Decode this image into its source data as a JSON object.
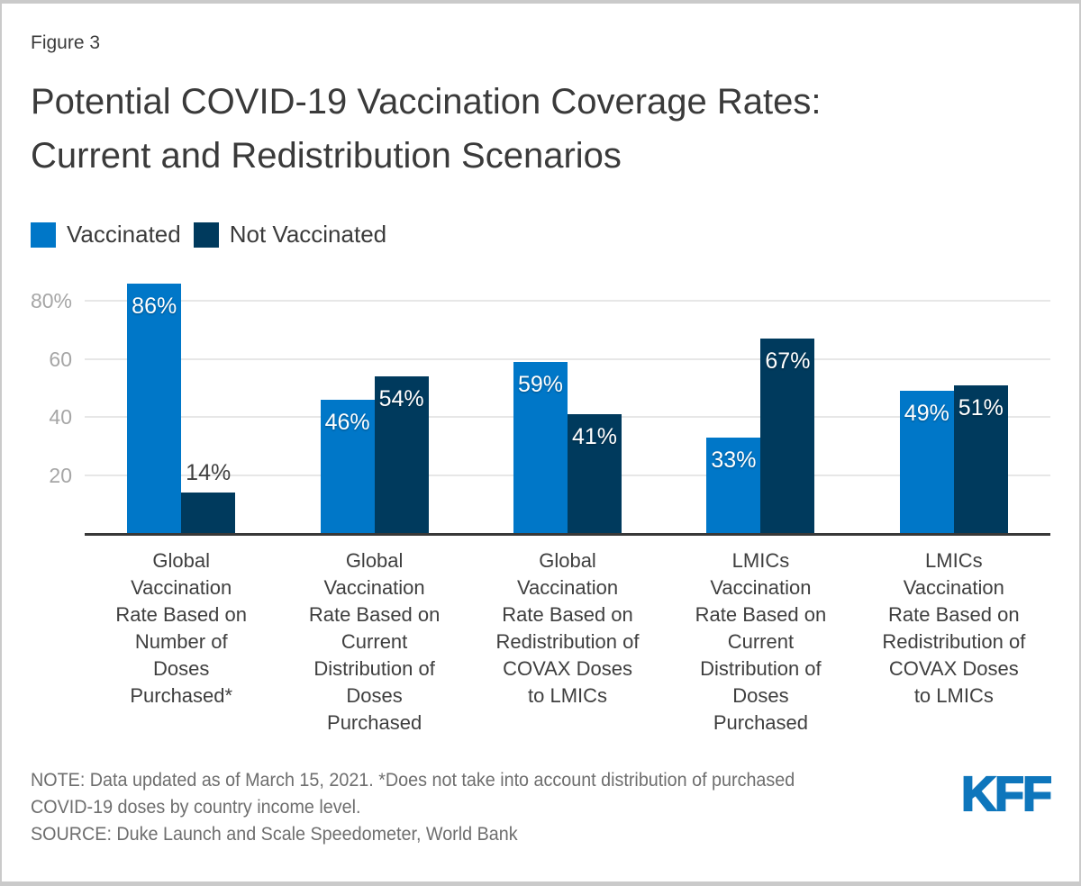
{
  "figure_label": "Figure 3",
  "title_lines": [
    "Potential COVID-19 Vaccination Coverage Rates:",
    "Current and Redistribution Scenarios"
  ],
  "legend": {
    "items": [
      {
        "label": "Vaccinated",
        "color": "#0077C8"
      },
      {
        "label": "Not Vaccinated",
        "color": "#003A5D"
      }
    ]
  },
  "chart_data": {
    "type": "bar",
    "title": "Potential COVID-19 Vaccination Coverage Rates: Current and Redistribution Scenarios",
    "unit": "percent",
    "categories": [
      "Global Vaccination Rate Based on Number of Doses Purchased*",
      "Global Vaccination Rate Based on Current Distribution of Doses Purchased",
      "Global Vaccination Rate Based on Redistribution of COVAX Doses to LMICs",
      "LMICs Vaccination Rate Based on Current Distribution of Doses Purchased",
      "LMICs Vaccination Rate Based on Redistribution of COVAX Doses to LMICs"
    ],
    "category_label_lines": [
      [
        "Global",
        "Vaccination",
        "Rate Based on",
        "Number of",
        "Doses",
        "Purchased*"
      ],
      [
        "Global",
        "Vaccination",
        "Rate Based on",
        "Current",
        "Distribution of",
        "Doses",
        "Purchased"
      ],
      [
        "Global",
        "Vaccination",
        "Rate Based on",
        "Redistribution of",
        "COVAX Doses",
        "to LMICs"
      ],
      [
        "LMICs",
        "Vaccination",
        "Rate Based on",
        "Current",
        "Distribution of",
        "Doses",
        "Purchased"
      ],
      [
        "LMICs",
        "Vaccination",
        "Rate Based on",
        "Redistribution of",
        "COVAX Doses",
        "to LMICs"
      ]
    ],
    "series": [
      {
        "name": "Vaccinated",
        "color": "#0077C8",
        "values": [
          86,
          46,
          59,
          33,
          49
        ]
      },
      {
        "name": "Not Vaccinated",
        "color": "#003A5D",
        "values": [
          14,
          54,
          41,
          67,
          51
        ]
      }
    ],
    "value_label_suffix": "%",
    "inside_label_min_value": 20,
    "y_ticks": [
      {
        "value": 20,
        "label": "20"
      },
      {
        "value": 40,
        "label": "40"
      },
      {
        "value": 60,
        "label": "60"
      },
      {
        "value": 80,
        "label": "80%"
      }
    ],
    "ylim": [
      0,
      92.4
    ],
    "grid": true,
    "legend_position": "top-left"
  },
  "note_lines": [
    "NOTE: Data updated as of March 15, 2021. *Does not take into account distribution of purchased",
    "COVID-19 doses by country income level.",
    "SOURCE: Duke Launch and Scale Speedometer, World Bank"
  ],
  "logo_text": "KFF",
  "colors": {
    "vaccinated_blue": "#0077C8",
    "not_vaccinated_navy": "#003A5D",
    "kff_logo_blue": "#0E76BC",
    "text_dark": "#3B3B3B",
    "axis_line": "#383838",
    "gridline": "#E7E7E7",
    "tick_label": "#A6A6A6",
    "note_gray": "#6E6E6E",
    "card_border": "#CACACA"
  }
}
